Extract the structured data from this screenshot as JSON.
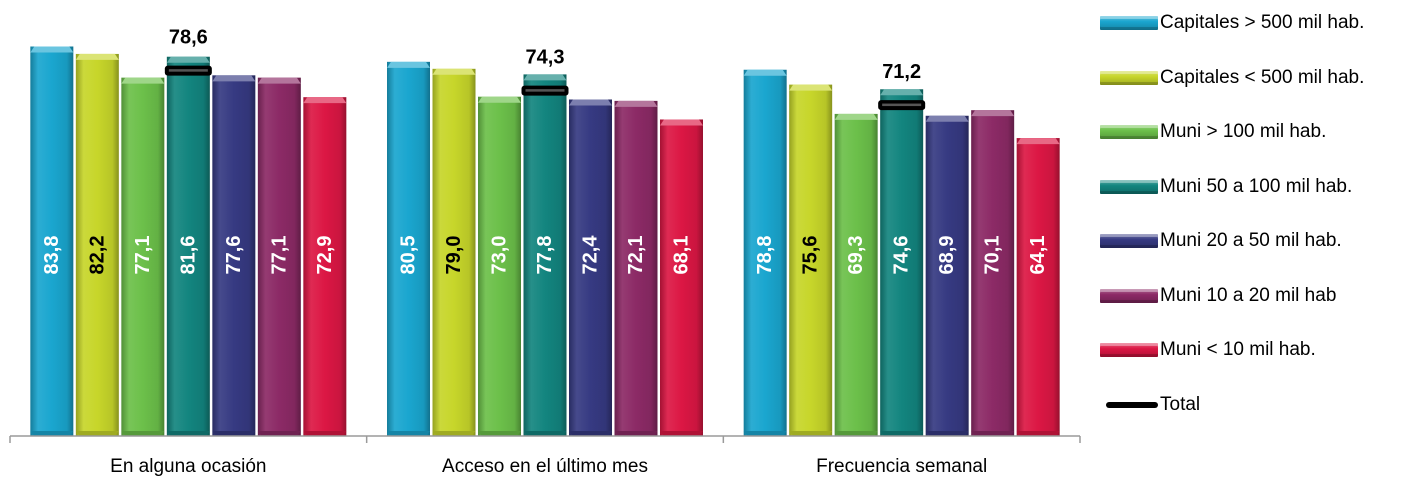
{
  "chart_data": {
    "type": "bar",
    "title": "",
    "xlabel": "",
    "ylabel": "",
    "ylim": [
      0,
      90
    ],
    "grid": false,
    "legend_position": "right",
    "categories": [
      "En alguna ocasión",
      "Acceso en el último mes",
      "Frecuencia semanal"
    ],
    "series": [
      {
        "name": "Capitales > 500 mil hab.",
        "color": "#1aa6cf",
        "label_color": "#ffffff",
        "values": [
          83.8,
          80.5,
          78.8
        ],
        "labels": [
          "83,8",
          "80,5",
          "78,8"
        ]
      },
      {
        "name": "Capitales < 500 mil hab.",
        "color": "#c7d62a",
        "label_color": "#000000",
        "values": [
          82.2,
          79.0,
          75.6
        ],
        "labels": [
          "82,2",
          "79,0",
          "75,6"
        ]
      },
      {
        "name": "Muni > 100 mil hab.",
        "color": "#6cc04a",
        "label_color": "#ffffff",
        "values": [
          77.1,
          73.0,
          69.3
        ],
        "labels": [
          "77,1",
          "73,0",
          "69,3"
        ]
      },
      {
        "name": "Muni  50 a 100 mil hab.",
        "color": "#13857f",
        "label_color": "#ffffff",
        "values": [
          81.6,
          77.8,
          74.6
        ],
        "labels": [
          "81,6",
          "77,8",
          "74,6"
        ]
      },
      {
        "name": "Muni 20 a 50 mil hab.",
        "color": "#363a82",
        "label_color": "#ffffff",
        "values": [
          77.6,
          72.4,
          68.9
        ],
        "labels": [
          "77,6",
          "72,4",
          "68,9"
        ]
      },
      {
        "name": "Muni 10 a 20 mil hab",
        "color": "#8c2a66",
        "label_color": "#ffffff",
        "values": [
          77.1,
          72.1,
          70.1
        ],
        "labels": [
          "77,1",
          "72,1",
          "70,1"
        ]
      },
      {
        "name": "Muni < 10 mil hab.",
        "color": "#dc1744",
        "label_color": "#ffffff",
        "values": [
          72.9,
          68.1,
          64.1
        ],
        "labels": [
          "72,9",
          "68,1",
          "64,1"
        ]
      }
    ],
    "total": {
      "name": "Total",
      "color": "#000000",
      "values": [
        78.6,
        74.3,
        71.2
      ],
      "labels": [
        "78,6",
        "74,3",
        "71,2"
      ]
    }
  }
}
